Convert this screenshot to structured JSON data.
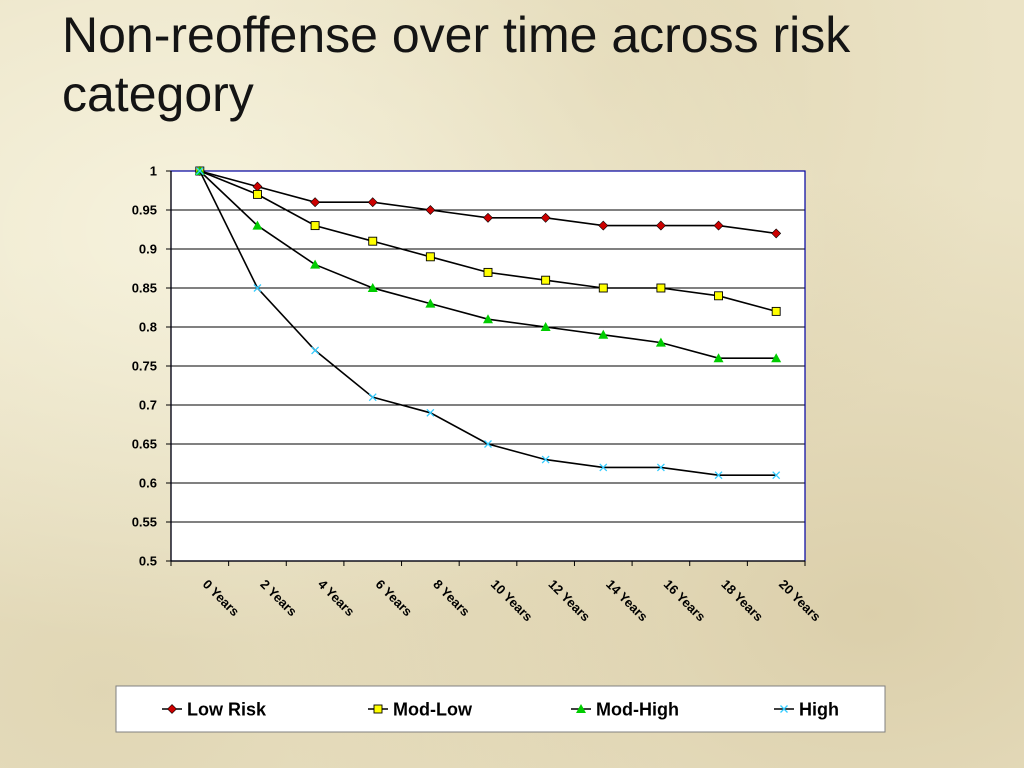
{
  "slide": {
    "title": "Non-reoffense over time across risk category"
  },
  "chart_data": {
    "type": "line",
    "title": "",
    "xlabel": "",
    "ylabel": "",
    "categories": [
      "0 Years",
      "2 Years",
      "4 Years",
      "6 Years",
      "8 Years",
      "10 Years",
      "12 Years",
      "14 Years",
      "16 Years",
      "18 Years",
      "20 Years"
    ],
    "ylim": [
      0.5,
      1
    ],
    "yticks": [
      "1",
      "0.95",
      "0.9",
      "0.85",
      "0.8",
      "0.75",
      "0.7",
      "0.65",
      "0.6",
      "0.55",
      "0.5"
    ],
    "grid": true,
    "legend_position": "bottom",
    "series": [
      {
        "name": "Low Risk",
        "marker": "diamond",
        "color": "#cc0000",
        "values": [
          1,
          0.98,
          0.96,
          0.96,
          0.95,
          0.94,
          0.94,
          0.93,
          0.93,
          0.93,
          0.92
        ]
      },
      {
        "name": "Mod-Low",
        "marker": "square",
        "color": "#ffff00",
        "values": [
          1,
          0.97,
          0.93,
          0.91,
          0.89,
          0.87,
          0.86,
          0.85,
          0.85,
          0.84,
          0.82
        ]
      },
      {
        "name": "Mod-High",
        "marker": "triangle",
        "color": "#00cc00",
        "values": [
          1,
          0.93,
          0.88,
          0.85,
          0.83,
          0.81,
          0.8,
          0.79,
          0.78,
          0.76,
          0.76
        ]
      },
      {
        "name": "High",
        "marker": "x",
        "color": "#33ccff",
        "values": [
          1,
          0.85,
          0.77,
          0.71,
          0.69,
          0.65,
          0.63,
          0.62,
          0.62,
          0.61,
          0.61
        ]
      }
    ]
  }
}
